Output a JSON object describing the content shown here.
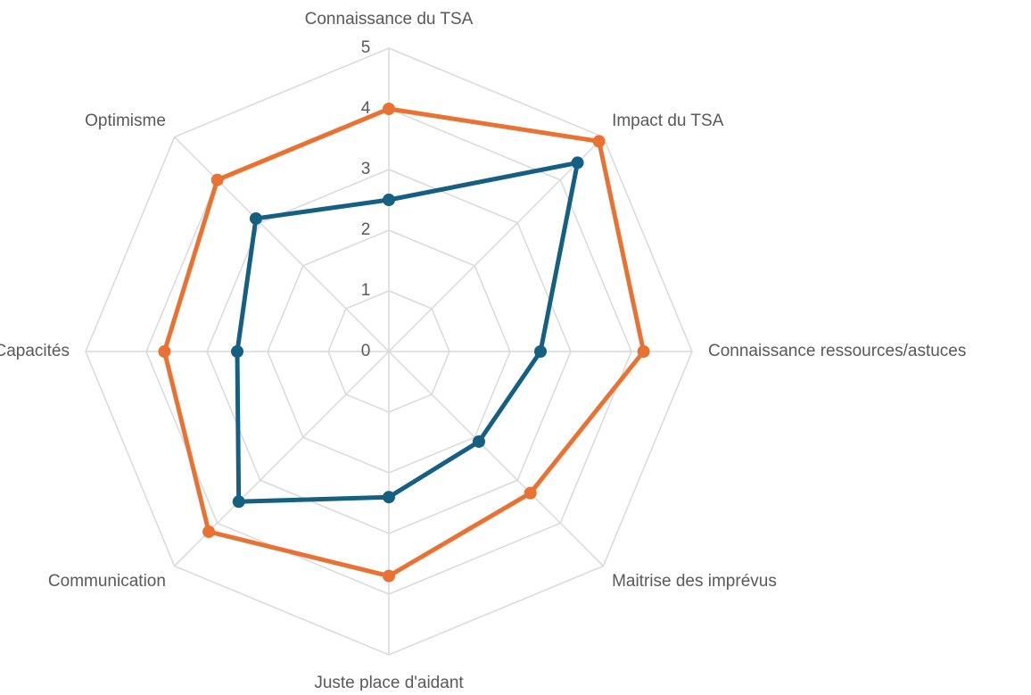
{
  "chart_data": {
    "type": "radar",
    "categories": [
      "Connaissance du TSA",
      "Impact du TSA",
      "Connaissance ressources/astuces",
      "Maitrise des imprévus",
      "Juste place d'aidant",
      "Communication",
      "Capacités",
      "Optimisme"
    ],
    "series": [
      {
        "color": "#e97132",
        "values": [
          4.0,
          4.9,
          4.2,
          3.3,
          3.7,
          4.2,
          3.7,
          4.0
        ]
      },
      {
        "color": "#156082",
        "values": [
          2.5,
          4.4,
          2.5,
          2.1,
          2.4,
          3.5,
          2.5,
          3.1
        ]
      }
    ],
    "ylim": [
      0,
      5
    ],
    "yticks": [
      0,
      1,
      2,
      3,
      4,
      5
    ],
    "grid": true
  }
}
